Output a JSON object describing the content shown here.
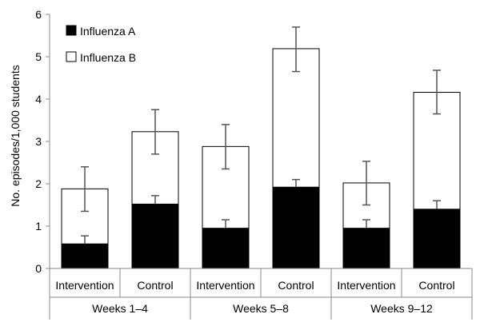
{
  "chart_data": {
    "type": "bar",
    "stacked": true,
    "ylabel": "No. episodes/1,000 students",
    "ylim": [
      0,
      6
    ],
    "yticks": [
      0,
      1,
      2,
      3,
      4,
      5,
      6
    ],
    "grid": false,
    "legend_position": "top-left",
    "groups": [
      "Weeks 1–4",
      "Weeks 5–8",
      "Weeks 9–12"
    ],
    "subcategories": [
      "Intervention",
      "Control"
    ],
    "categories": [
      "Intervention",
      "Control",
      "Intervention",
      "Control",
      "Intervention",
      "Control"
    ],
    "series": [
      {
        "name": "Influenza A",
        "color": "#000000",
        "values": [
          0.58,
          1.52,
          0.95,
          1.92,
          0.95,
          1.4
        ],
        "error_upper": [
          0.77,
          1.72,
          1.15,
          2.1,
          1.15,
          1.6
        ]
      },
      {
        "name": "Influenza B",
        "color": "#ffffff",
        "values": [
          1.3,
          1.71,
          1.93,
          3.27,
          1.07,
          2.76
        ],
        "error_lower": [
          1.35,
          2.7,
          2.35,
          4.65,
          1.5,
          3.65
        ],
        "error_upper": [
          2.4,
          3.75,
          3.4,
          5.7,
          2.53,
          4.68
        ]
      }
    ],
    "totals": [
      1.88,
      3.23,
      2.88,
      5.19,
      2.02,
      4.16
    ]
  }
}
